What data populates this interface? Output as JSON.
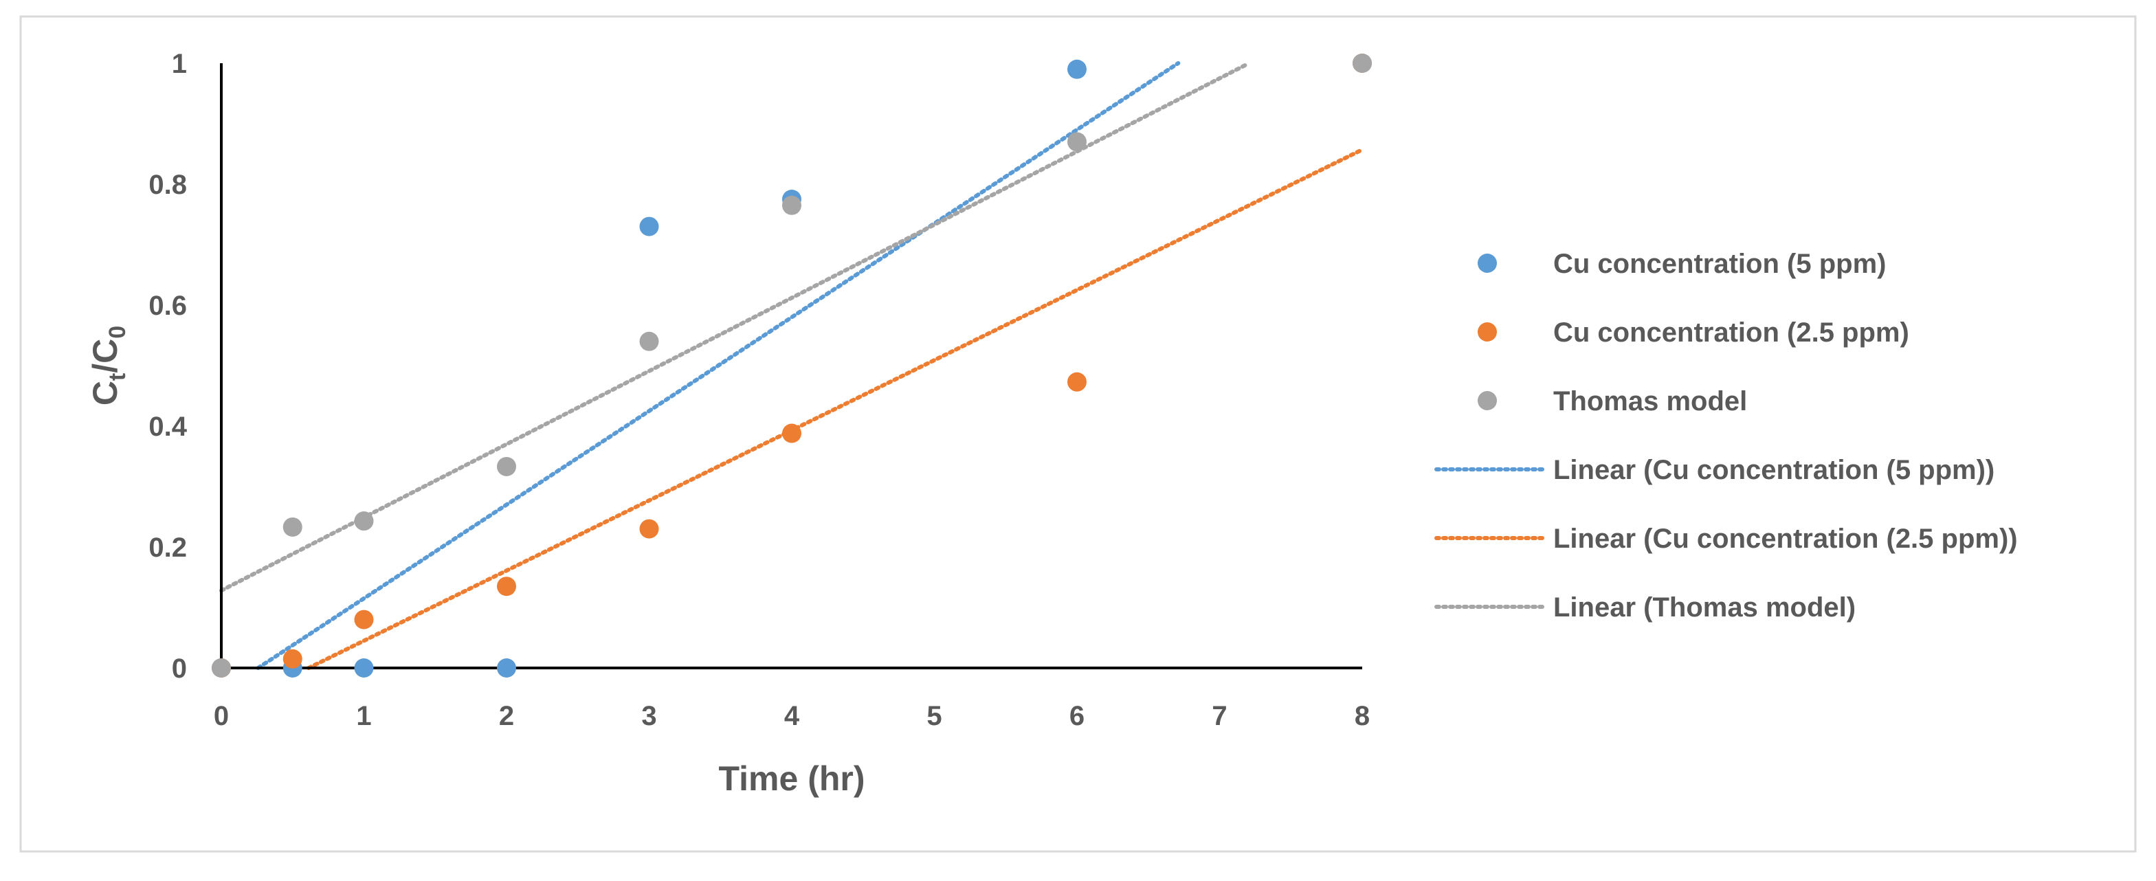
{
  "chart_data": {
    "type": "scatter",
    "title": "",
    "xlabel": "Time (hr)",
    "ylabel": {
      "main": "C",
      "sub_top": "t",
      "slash": "/C",
      "sub_bottom": "0"
    },
    "xlim": [
      0,
      8
    ],
    "ylim": [
      0,
      1
    ],
    "x_ticks": [
      0,
      1,
      2,
      3,
      4,
      5,
      6,
      7,
      8
    ],
    "y_ticks": [
      0,
      0.2,
      0.4,
      0.6,
      0.8,
      1
    ],
    "x_tick_labels": [
      "0",
      "1",
      "2",
      "3",
      "4",
      "5",
      "6",
      "7",
      "8"
    ],
    "y_tick_labels": [
      "0",
      "0.2",
      "0.4",
      "0.6",
      "0.8",
      "1"
    ],
    "grid": false,
    "legend_position": "right",
    "series": [
      {
        "name": "Cu concentration (5 ppm)",
        "color": "#5B9BD5",
        "points": [
          [
            0,
            0
          ],
          [
            0.5,
            0
          ],
          [
            1,
            0
          ],
          [
            2,
            0
          ],
          [
            3,
            0.73
          ],
          [
            4,
            0.775
          ],
          [
            6,
            0.99
          ],
          [
            8,
            1.0
          ]
        ]
      },
      {
        "name": "Cu concentration (2.5 ppm)",
        "color": "#ED7D31",
        "points": [
          [
            0,
            0
          ],
          [
            0.5,
            0.015
          ],
          [
            1,
            0.08
          ],
          [
            2,
            0.135
          ],
          [
            3,
            0.23
          ],
          [
            4,
            0.388
          ],
          [
            6,
            0.473
          ],
          [
            8,
            1.0
          ]
        ]
      },
      {
        "name": "Thomas model",
        "color": "#A5A5A5",
        "points": [
          [
            0,
            0
          ],
          [
            0.5,
            0.233
          ],
          [
            1,
            0.243
          ],
          [
            2,
            0.333
          ],
          [
            3,
            0.54
          ],
          [
            4,
            0.765
          ],
          [
            6,
            0.87
          ],
          [
            8,
            1.0
          ]
        ]
      }
    ],
    "trendlines": [
      {
        "name": "Linear (Cu concentration (5 ppm))",
        "color": "#5B9BD5",
        "slope": 0.155,
        "intercept": -0.04,
        "x_range": [
          0.258,
          6.71
        ]
      },
      {
        "name": "Linear (Cu concentration (2.5 ppm))",
        "color": "#ED7D31",
        "slope": 0.116,
        "intercept": -0.071,
        "x_range": [
          0.612,
          8.0
        ]
      },
      {
        "name": "Linear (Thomas model)",
        "color": "#A5A5A5",
        "slope": 0.121,
        "intercept": 0.128,
        "x_range": [
          0.0,
          7.2
        ]
      }
    ]
  }
}
